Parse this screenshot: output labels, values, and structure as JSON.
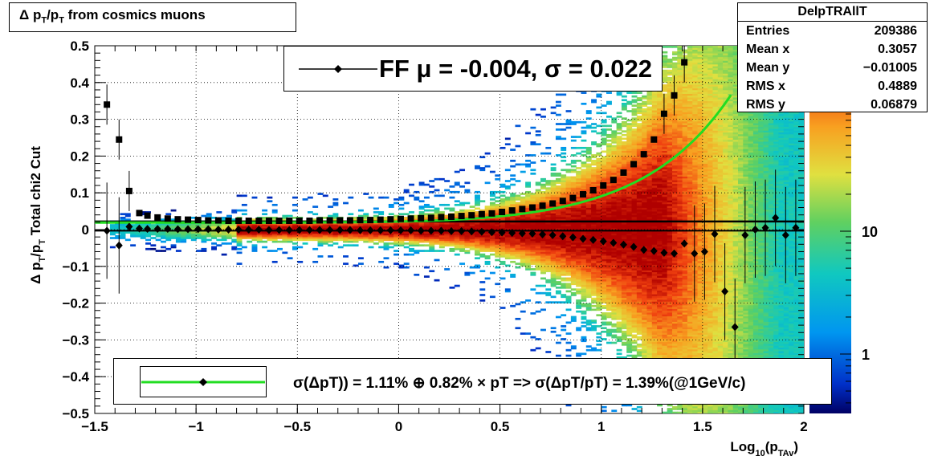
{
  "title": "Δ p_T/p_T from cosmics muons",
  "stats": {
    "name": "DelpTRAllT",
    "rows": [
      {
        "label": "Entries",
        "value": "209386"
      },
      {
        "label": "Mean x",
        "value": "0.3057"
      },
      {
        "label": "Mean y",
        "value": "−0.01005"
      },
      {
        "label": "RMS x",
        "value": "0.4889"
      },
      {
        "label": "RMS y",
        "value": "0.06879"
      }
    ]
  },
  "legend_top": "FF μ = -0.004, σ =   0.022",
  "legend_bottom": "σ(ΔpT)) =  1.11% ⊕  0.82% × pT => σ(ΔpT/pT) =  1.39%(@1GeV/c)",
  "colors": {
    "fit_curve": "#22dd22",
    "markers": "#000000"
  },
  "chart_data": {
    "type": "heatmap",
    "title": "Δ p_T/p_T from cosmics muons",
    "xlabel": "Log10(pTAv)",
    "ylabel": "Δ pT/pT  Total chi2 Cut",
    "xlim": [
      -1.5,
      2.0
    ],
    "ylim": [
      -0.5,
      0.5
    ],
    "x_ticks": [
      "−1.5",
      "−1",
      "−0.5",
      "0",
      "0.5",
      "1",
      "1.5",
      "2"
    ],
    "y_ticks": [
      "−0.5",
      "−0.4",
      "−0.3",
      "−0.2",
      "−0.1",
      "0",
      "0.1",
      "0.2",
      "0.3",
      "0.4",
      "0.5"
    ],
    "z_scale": "log",
    "z_ticks": [
      "1",
      "10"
    ],
    "grid": true,
    "sigma_points": {
      "x": [
        -1.44,
        -1.38,
        -1.33,
        -1.28,
        -1.24,
        -1.19,
        -1.14,
        -1.09,
        -1.04,
        -0.99,
        -0.94,
        -0.89,
        -0.84,
        -0.79,
        -0.74,
        -0.69,
        -0.64,
        -0.59,
        -0.54,
        -0.49,
        -0.44,
        -0.39,
        -0.34,
        -0.29,
        -0.24,
        -0.19,
        -0.14,
        -0.09,
        -0.04,
        0.01,
        0.06,
        0.11,
        0.16,
        0.21,
        0.26,
        0.31,
        0.36,
        0.41,
        0.46,
        0.51,
        0.56,
        0.61,
        0.66,
        0.71,
        0.76,
        0.81,
        0.86,
        0.91,
        0.96,
        1.01,
        1.06,
        1.11,
        1.16,
        1.21,
        1.26,
        1.31,
        1.36,
        1.41
      ],
      "y": [
        0.34,
        0.245,
        0.105,
        0.045,
        0.038,
        0.033,
        0.03,
        0.028,
        0.027,
        0.026,
        0.025,
        0.025,
        0.024,
        0.024,
        0.024,
        0.024,
        0.024,
        0.024,
        0.024,
        0.024,
        0.024,
        0.025,
        0.025,
        0.025,
        0.025,
        0.026,
        0.026,
        0.027,
        0.028,
        0.029,
        0.03,
        0.031,
        0.032,
        0.034,
        0.035,
        0.037,
        0.039,
        0.042,
        0.044,
        0.048,
        0.052,
        0.056,
        0.06,
        0.065,
        0.071,
        0.078,
        0.086,
        0.096,
        0.107,
        0.12,
        0.135,
        0.155,
        0.178,
        0.205,
        0.245,
        0.315,
        0.365,
        0.455
      ]
    },
    "mean_points": {
      "x": [
        -1.44,
        -1.38,
        -1.33,
        -1.28,
        -1.24,
        -1.19,
        -1.14,
        -1.09,
        -1.04,
        -0.99,
        -0.94,
        -0.89,
        -0.84,
        -0.79,
        -0.74,
        -0.69,
        -0.64,
        -0.59,
        -0.54,
        -0.49,
        -0.44,
        -0.39,
        -0.34,
        -0.29,
        -0.24,
        -0.19,
        -0.14,
        -0.09,
        -0.04,
        0.01,
        0.06,
        0.11,
        0.16,
        0.21,
        0.26,
        0.31,
        0.36,
        0.41,
        0.46,
        0.51,
        0.56,
        0.61,
        0.66,
        0.71,
        0.76,
        0.81,
        0.86,
        0.91,
        0.96,
        1.01,
        1.06,
        1.11,
        1.16,
        1.21,
        1.26,
        1.31,
        1.36,
        1.41,
        1.46,
        1.51,
        1.56,
        1.61,
        1.66,
        1.71,
        1.76,
        1.81,
        1.86,
        1.91,
        1.96
      ],
      "y": [
        -0.003,
        -0.043,
        0.008,
        0.003,
        0.002,
        0.002,
        0.002,
        0.001,
        0.001,
        0.001,
        0.001,
        0.0,
        0.0,
        0.0,
        0.0,
        0.0,
        -0.001,
        -0.001,
        -0.001,
        -0.001,
        -0.001,
        -0.001,
        -0.001,
        -0.001,
        -0.001,
        -0.002,
        -0.002,
        -0.002,
        -0.002,
        -0.002,
        -0.002,
        -0.003,
        -0.003,
        -0.003,
        -0.004,
        -0.004,
        -0.005,
        -0.006,
        -0.007,
        -0.008,
        -0.009,
        -0.01,
        -0.011,
        -0.013,
        -0.015,
        -0.018,
        -0.021,
        -0.025,
        -0.028,
        -0.032,
        -0.036,
        -0.041,
        -0.047,
        -0.055,
        -0.058,
        -0.063,
        -0.065,
        -0.038,
        -0.065,
        -0.06,
        -0.012,
        -0.168,
        -0.265,
        -0.015,
        0.0,
        0.005,
        0.032,
        -0.015,
        0.005
      ]
    },
    "fit": {
      "line_y": 0.022,
      "curve": "sqrt(1.11^2 + (0.82*pT)^2)% , pT = 10^x"
    }
  }
}
